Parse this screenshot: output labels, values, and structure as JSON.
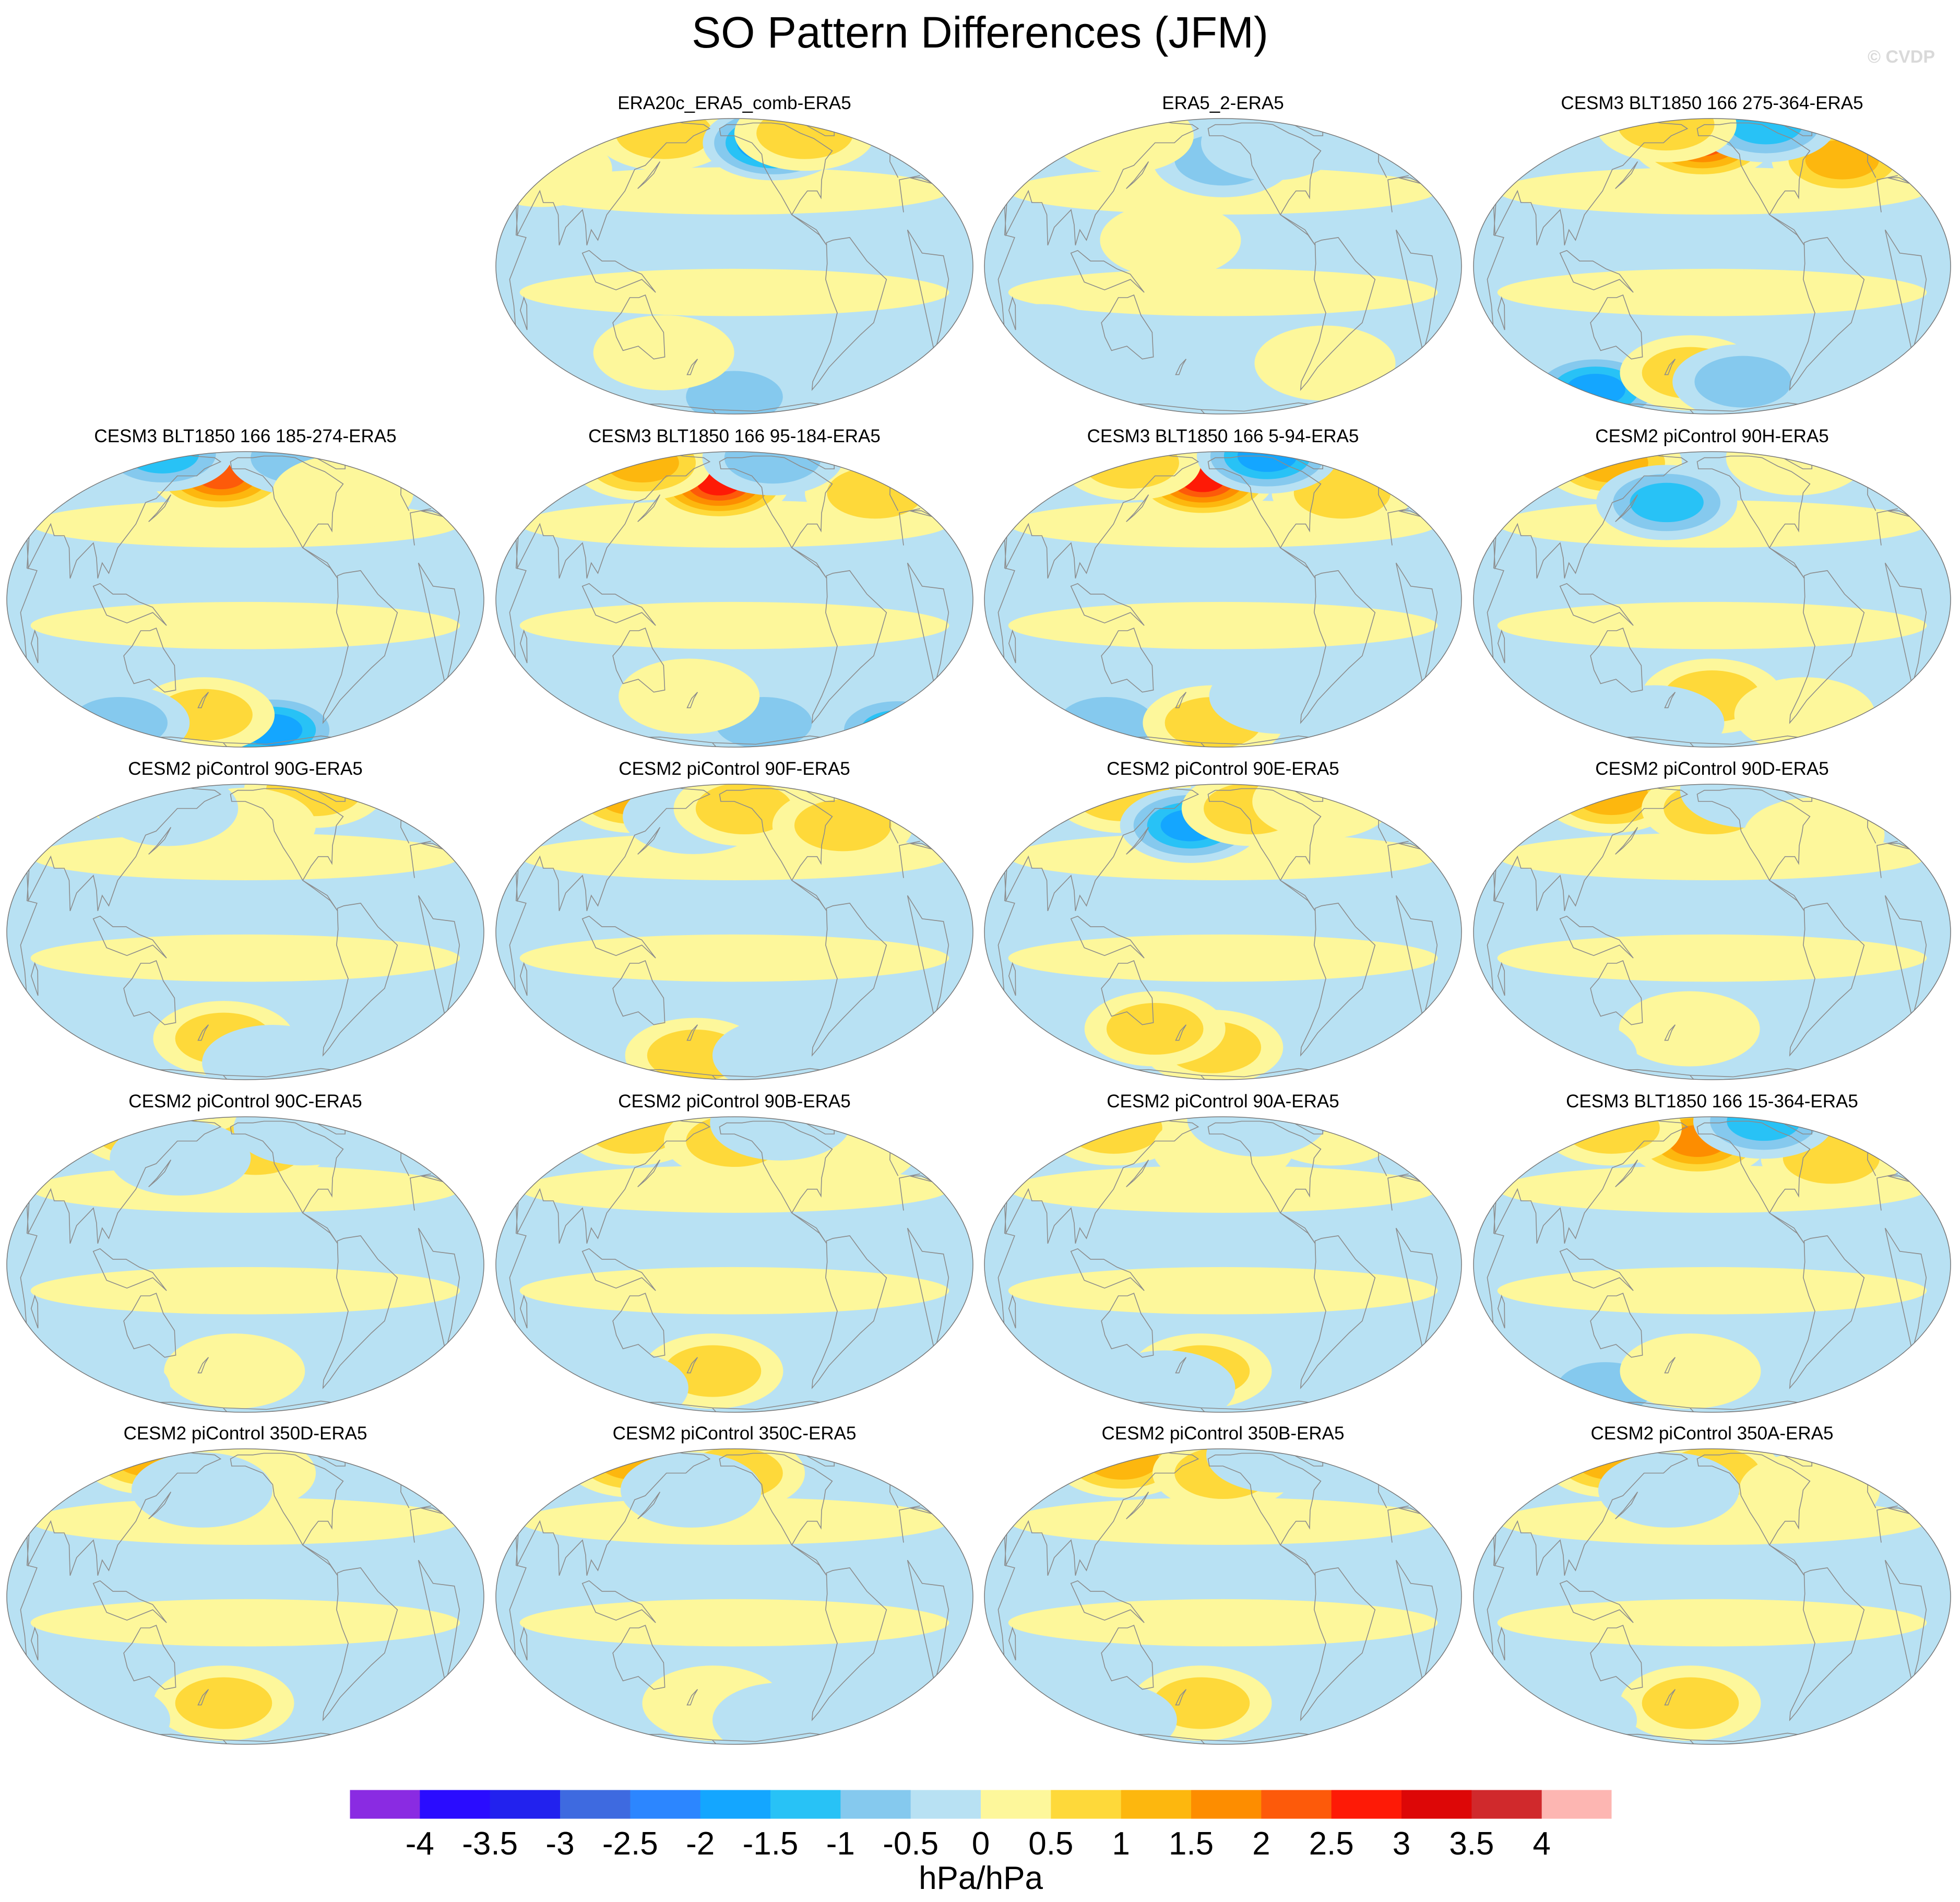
{
  "figure": {
    "title": "SO Pattern Differences (JFM)",
    "watermark": "© CVDP"
  },
  "chart_data": {
    "type": "heatmap",
    "title": "SO Pattern Differences (JFM)",
    "projection": "Robinson-style global maps, Pacific-centered",
    "panels": [
      {
        "title": "ERA20c_ERA5_comb-ERA5",
        "features": [
          {
            "lon": 130,
            "lat": 62,
            "value": 1.0
          },
          {
            "lon": -110,
            "lat": 55,
            "value": -2.5
          },
          {
            "lon": -70,
            "lat": 62,
            "value": 1.0
          },
          {
            "lon": 40,
            "lat": 40,
            "value": 0.5
          },
          {
            "lon": -150,
            "lat": -60,
            "value": -1.0
          },
          {
            "lon": 150,
            "lat": -35,
            "value": 0.5
          }
        ]
      },
      {
        "title": "ERA5_2-ERA5",
        "features": [
          {
            "lon": 170,
            "lat": 10,
            "value": 0.5
          },
          {
            "lon": -150,
            "lat": 45,
            "value": -1.0
          },
          {
            "lon": -100,
            "lat": 55,
            "value": -0.5
          },
          {
            "lon": 60,
            "lat": -30,
            "value": -0.5
          },
          {
            "lon": -60,
            "lat": -40,
            "value": 0.5
          },
          {
            "lon": 100,
            "lat": 60,
            "value": 0.5
          }
        ]
      },
      {
        "title": "CESM3 BLT1850 166 275-364-ERA5",
        "features": [
          {
            "lon": -160,
            "lat": 55,
            "value": 2.5
          },
          {
            "lon": -30,
            "lat": 45,
            "value": 1.5
          },
          {
            "lon": -80,
            "lat": 70,
            "value": -1.5
          },
          {
            "lon": 90,
            "lat": -55,
            "value": -2.0
          },
          {
            "lon": -170,
            "lat": -45,
            "value": 1.0
          },
          {
            "lon": 150,
            "lat": 70,
            "value": 1.0
          },
          {
            "lon": -120,
            "lat": -50,
            "value": -1.0
          }
        ]
      },
      {
        "title": "CESM3 BLT1850 166 185-274-ERA5",
        "features": [
          {
            "lon": -175,
            "lat": 55,
            "value": 2.5
          },
          {
            "lon": -120,
            "lat": -60,
            "value": -2.0
          },
          {
            "lon": 90,
            "lat": 75,
            "value": -1.5
          },
          {
            "lon": -80,
            "lat": 70,
            "value": -1.0
          },
          {
            "lon": 170,
            "lat": -50,
            "value": 1.0
          },
          {
            "lon": -60,
            "lat": 45,
            "value": 0.5
          },
          {
            "lon": 80,
            "lat": -55,
            "value": -1.0
          }
        ]
      },
      {
        "title": "CESM3 BLT1850 166 95-184-ERA5",
        "features": [
          {
            "lon": -165,
            "lat": 50,
            "value": 3.0
          },
          {
            "lon": 100,
            "lat": 65,
            "value": 1.5
          },
          {
            "lon": -20,
            "lat": 45,
            "value": 1.0
          },
          {
            "lon": -100,
            "lat": 70,
            "value": -1.0
          },
          {
            "lon": 30,
            "lat": -60,
            "value": -1.5
          },
          {
            "lon": -120,
            "lat": -55,
            "value": -1.0
          },
          {
            "lon": 170,
            "lat": -40,
            "value": 0.5
          }
        ]
      },
      {
        "title": "CESM3 BLT1850 166 5-94-ERA5",
        "features": [
          {
            "lon": -170,
            "lat": 52,
            "value": 3.0
          },
          {
            "lon": 100,
            "lat": 65,
            "value": 1.0
          },
          {
            "lon": -40,
            "lat": 45,
            "value": 1.0
          },
          {
            "lon": -90,
            "lat": 72,
            "value": -2.0
          },
          {
            "lon": 90,
            "lat": -55,
            "value": -1.0
          },
          {
            "lon": -160,
            "lat": -55,
            "value": 1.0
          },
          {
            "lon": -100,
            "lat": -40,
            "value": -0.5
          }
        ]
      },
      {
        "title": "CESM2 piControl 90H-ERA5",
        "features": [
          {
            "lon": 90,
            "lat": 65,
            "value": 1.5
          },
          {
            "lon": 170,
            "lat": 40,
            "value": -1.5
          },
          {
            "lon": -150,
            "lat": -40,
            "value": 1.0
          },
          {
            "lon": -40,
            "lat": 70,
            "value": 0.5
          },
          {
            "lon": 150,
            "lat": -55,
            "value": -0.5
          },
          {
            "lon": -60,
            "lat": -50,
            "value": 0.5
          }
        ]
      },
      {
        "title": "CESM2 piControl 90G-ERA5",
        "features": [
          {
            "lon": 90,
            "lat": 68,
            "value": 1.0
          },
          {
            "lon": -60,
            "lat": 70,
            "value": 1.0
          },
          {
            "lon": -170,
            "lat": -45,
            "value": 1.0
          },
          {
            "lon": -150,
            "lat": 45,
            "value": 0.5
          },
          {
            "lon": 130,
            "lat": 55,
            "value": -0.5
          },
          {
            "lon": -120,
            "lat": -60,
            "value": -0.5
          }
        ]
      },
      {
        "title": "CESM2 piControl 90F-ERA5",
        "features": [
          {
            "lon": 90,
            "lat": 65,
            "value": 1.5
          },
          {
            "lon": 170,
            "lat": 50,
            "value": -0.5
          },
          {
            "lon": -140,
            "lat": 55,
            "value": 1.0
          },
          {
            "lon": -50,
            "lat": 45,
            "value": 1.0
          },
          {
            "lon": 170,
            "lat": -55,
            "value": 1.0
          },
          {
            "lon": -100,
            "lat": -55,
            "value": -0.5
          }
        ]
      },
      {
        "title": "CESM2 piControl 90E-ERA5",
        "features": [
          {
            "lon": 90,
            "lat": 65,
            "value": 1.0
          },
          {
            "lon": 180,
            "lat": 45,
            "value": -2.0
          },
          {
            "lon": -120,
            "lat": 55,
            "value": 1.0
          },
          {
            "lon": -40,
            "lat": 60,
            "value": 0.5
          },
          {
            "lon": -160,
            "lat": -50,
            "value": 1.0
          },
          {
            "lon": 150,
            "lat": -40,
            "value": 1.0
          }
        ]
      },
      {
        "title": "CESM2 piControl 90D-ERA5",
        "features": [
          {
            "lon": 90,
            "lat": 65,
            "value": 1.5
          },
          {
            "lon": -150,
            "lat": 55,
            "value": 1.0
          },
          {
            "lon": -100,
            "lat": 70,
            "value": -0.5
          },
          {
            "lon": -170,
            "lat": -40,
            "value": 0.5
          },
          {
            "lon": 60,
            "lat": -55,
            "value": -0.5
          },
          {
            "lon": -60,
            "lat": 40,
            "value": 0.5
          }
        ]
      },
      {
        "title": "CESM2 piControl 90C-ERA5",
        "features": [
          {
            "lon": 90,
            "lat": 65,
            "value": 1.5
          },
          {
            "lon": -140,
            "lat": 50,
            "value": 1.0
          },
          {
            "lon": 150,
            "lat": 45,
            "value": -0.5
          },
          {
            "lon": -160,
            "lat": -45,
            "value": 0.5
          },
          {
            "lon": -80,
            "lat": 65,
            "value": -0.5
          },
          {
            "lon": 60,
            "lat": -55,
            "value": -0.5
          }
        ]
      },
      {
        "title": "CESM2 piControl 90B-ERA5",
        "features": [
          {
            "lon": 90,
            "lat": 65,
            "value": 1.0
          },
          {
            "lon": -150,
            "lat": 55,
            "value": 1.0
          },
          {
            "lon": -40,
            "lat": 50,
            "value": 0.5
          },
          {
            "lon": -170,
            "lat": -45,
            "value": 1.0
          },
          {
            "lon": -90,
            "lat": 70,
            "value": -0.5
          },
          {
            "lon": 90,
            "lat": -55,
            "value": -0.5
          }
        ]
      },
      {
        "title": "CESM2 piControl 90A-ERA5",
        "features": [
          {
            "lon": 80,
            "lat": 65,
            "value": 1.0
          },
          {
            "lon": -150,
            "lat": 50,
            "value": 0.5
          },
          {
            "lon": -20,
            "lat": 65,
            "value": 0.5
          },
          {
            "lon": -170,
            "lat": -45,
            "value": 1.0
          },
          {
            "lon": -100,
            "lat": 75,
            "value": -0.5
          },
          {
            "lon": 150,
            "lat": -55,
            "value": -0.5
          }
        ]
      },
      {
        "title": "CESM3 BLT1850 166 15-364-ERA5",
        "features": [
          {
            "lon": -165,
            "lat": 55,
            "value": 2.0
          },
          {
            "lon": -40,
            "lat": 45,
            "value": 1.0
          },
          {
            "lon": 90,
            "lat": 65,
            "value": 1.0
          },
          {
            "lon": -80,
            "lat": 72,
            "value": -1.5
          },
          {
            "lon": 100,
            "lat": -55,
            "value": -1.0
          },
          {
            "lon": -170,
            "lat": -45,
            "value": 0.5
          }
        ]
      },
      {
        "title": "CESM2 piControl 350D-ERA5",
        "features": [
          {
            "lon": 90,
            "lat": 68,
            "value": 1.5
          },
          {
            "lon": -150,
            "lat": 55,
            "value": 0.5
          },
          {
            "lon": 170,
            "lat": 45,
            "value": -0.5
          },
          {
            "lon": -170,
            "lat": -45,
            "value": 1.0
          },
          {
            "lon": 60,
            "lat": -55,
            "value": -0.5
          }
        ]
      },
      {
        "title": "CESM2 piControl 350C-ERA5",
        "features": [
          {
            "lon": 90,
            "lat": 65,
            "value": 1.5
          },
          {
            "lon": -150,
            "lat": 55,
            "value": 1.0
          },
          {
            "lon": 170,
            "lat": 45,
            "value": -0.5
          },
          {
            "lon": -170,
            "lat": -45,
            "value": 0.5
          },
          {
            "lon": -100,
            "lat": -55,
            "value": -0.5
          }
        ]
      },
      {
        "title": "CESM2 piControl 350B-ERA5",
        "features": [
          {
            "lon": 90,
            "lat": 65,
            "value": 1.5
          },
          {
            "lon": -150,
            "lat": 55,
            "value": 1.0
          },
          {
            "lon": -80,
            "lat": 70,
            "value": -0.5
          },
          {
            "lon": -170,
            "lat": -45,
            "value": 1.0
          },
          {
            "lon": 90,
            "lat": -55,
            "value": -0.5
          }
        ]
      },
      {
        "title": "CESM2 piControl 350A-ERA5",
        "features": [
          {
            "lon": 90,
            "lat": 65,
            "value": 1.5
          },
          {
            "lon": -150,
            "lat": 55,
            "value": 1.0
          },
          {
            "lon": 170,
            "lat": 45,
            "value": -0.5
          },
          {
            "lon": -170,
            "lat": -45,
            "value": 1.0
          },
          {
            "lon": 60,
            "lat": -55,
            "value": -0.5
          },
          {
            "lon": -60,
            "lat": 45,
            "value": 0.5
          }
        ]
      }
    ],
    "colorbar": {
      "unit": "hPa/hPa",
      "levels": [
        -4,
        -3.5,
        -3,
        -2.5,
        -2,
        -1.5,
        -1,
        -0.5,
        0,
        0.5,
        1,
        1.5,
        2,
        2.5,
        3,
        3.5,
        4
      ],
      "tick_labels": [
        "-4",
        "-3.5",
        "-3",
        "-2.5",
        "-2",
        "-1.5",
        "-1",
        "-0.5",
        "0",
        "0.5",
        "1",
        "1.5",
        "2",
        "2.5",
        "3",
        "3.5",
        "4"
      ],
      "colors": [
        "#8a2be2",
        "#2a0cff",
        "#2222ee",
        "#3e6ae0",
        "#2c86ff",
        "#14a6ff",
        "#28c2f6",
        "#85c9ee",
        "#b8e1f3",
        "#fdf79b",
        "#fed93a",
        "#fdb70e",
        "#fd8d00",
        "#fd5a0a",
        "#fe1a06",
        "#dd0707",
        "#d0292c",
        "#fdb6b2"
      ]
    }
  }
}
